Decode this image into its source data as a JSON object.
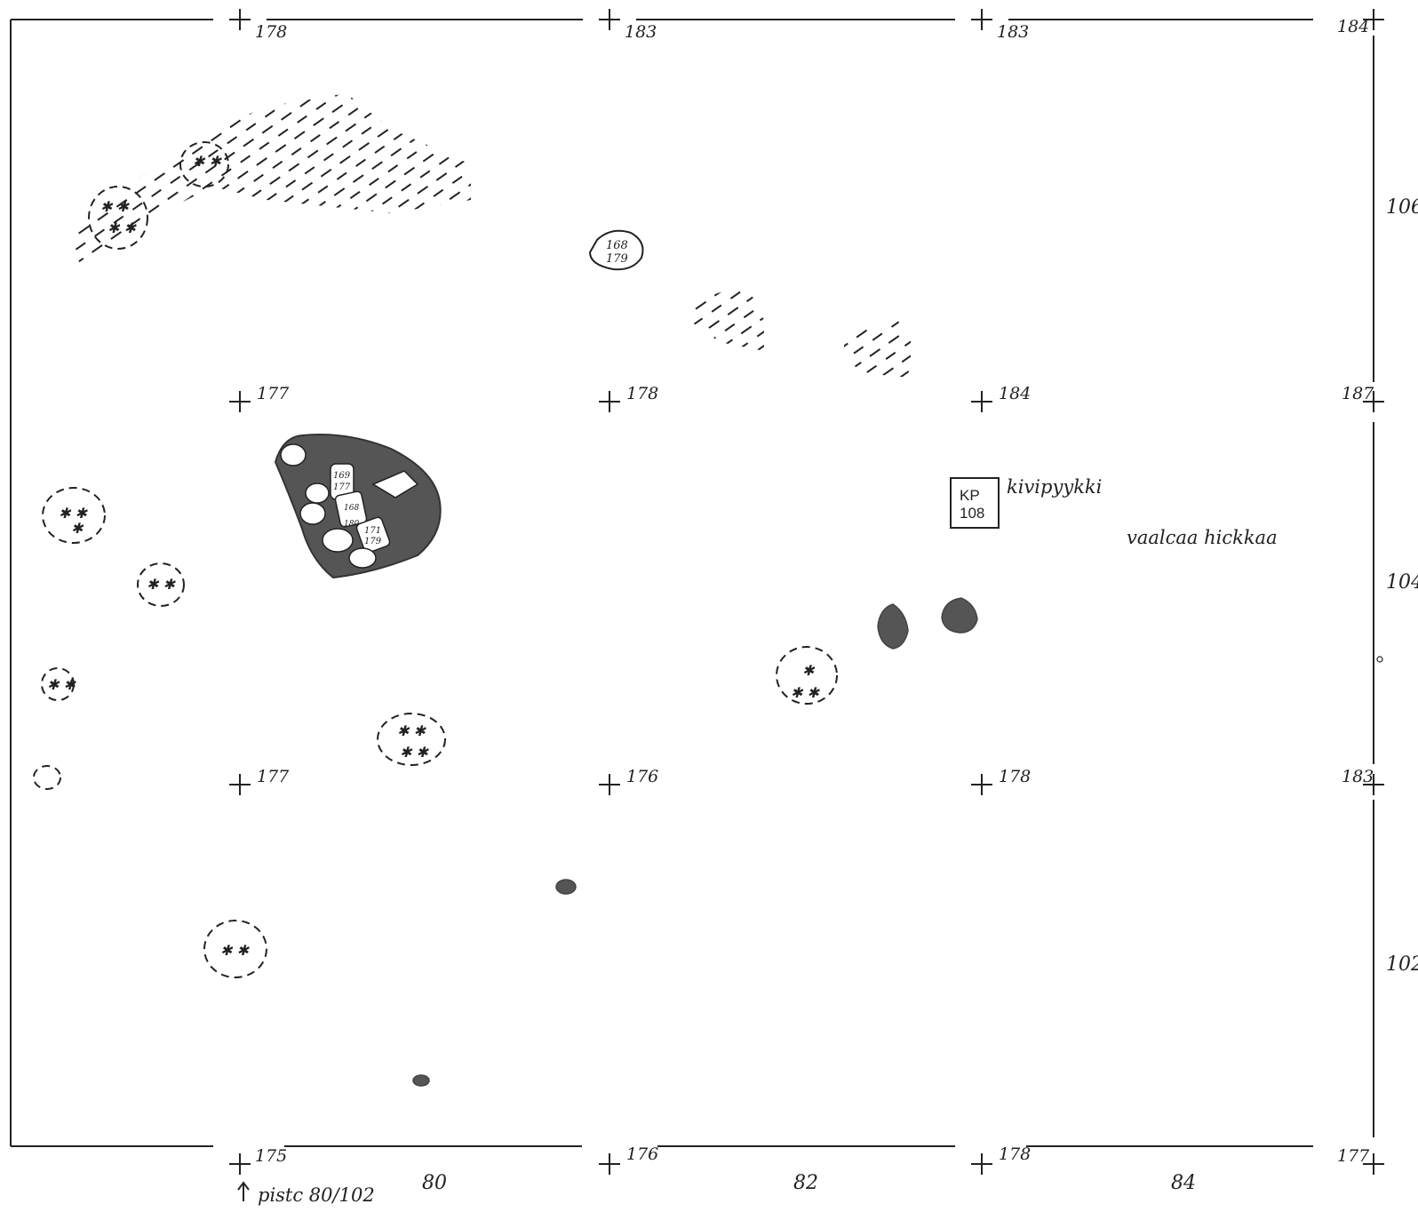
{
  "map": {
    "colors": {
      "ink": "#222222",
      "dark_fill": "#555555",
      "stone_fill": "#ffffff",
      "paper": "#ffffff"
    },
    "elevations": {
      "top": [
        "178",
        "183",
        "183",
        "184"
      ],
      "row_upper": [
        "177",
        "178",
        "184",
        "187"
      ],
      "row_lower": [
        "177",
        "176",
        "178",
        "183"
      ],
      "bottom": [
        "175",
        "176",
        "178",
        "177"
      ]
    },
    "axis_x": [
      "80",
      "82",
      "84"
    ],
    "axis_y": [
      "106",
      "104",
      "102"
    ],
    "labels": {
      "stone_bench": "kivipyykki",
      "light_sand": "vaalcaa hickkaa",
      "datum_point": "pistc 80/102",
      "kp_line1": "KP",
      "kp_line2": "108"
    },
    "find_tags": {
      "tag_a": [
        "168",
        "179"
      ],
      "hearth_tag_1": [
        "169",
        "177"
      ],
      "hearth_tag_2": [
        "171",
        "179"
      ],
      "hearth_tag_3": [
        "168",
        "180"
      ]
    },
    "icons": [
      "plus-marker-icon",
      "up-arrow-icon",
      "hatch-area-icon",
      "dashed-find-circle-icon"
    ]
  }
}
